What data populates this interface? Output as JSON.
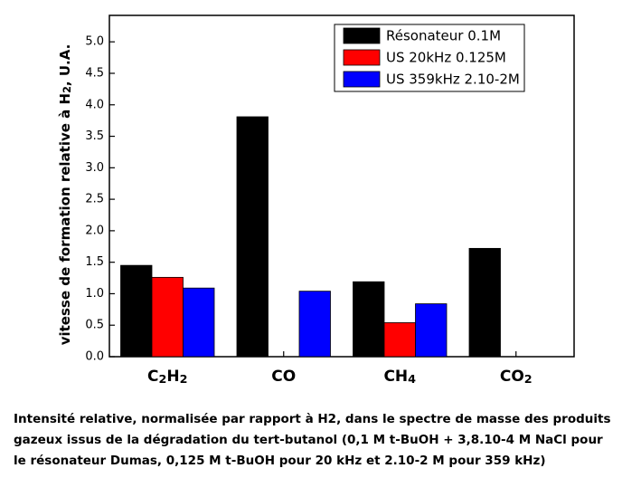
{
  "chart_data": {
    "type": "bar",
    "ylabel": "vitesse de formation relative à H2, U.A.",
    "categories": [
      "C2H2",
      "CO",
      "CH4",
      "CO2"
    ],
    "series": [
      {
        "name": "Résonateur 0.1M",
        "color": "#000000",
        "values": [
          1.45,
          3.81,
          1.19,
          1.72
        ]
      },
      {
        "name": "US 20kHz 0.125M",
        "color": "#ff0000",
        "values": [
          1.26,
          null,
          0.54,
          null
        ]
      },
      {
        "name": "US 359kHz 2.10-2M",
        "color": "#0000ff",
        "values": [
          1.09,
          1.04,
          0.84,
          null
        ]
      }
    ],
    "ylim": [
      0,
      5.42
    ],
    "yticks": [
      {
        "value": 0,
        "label": "0.0"
      },
      0.5,
      {
        "value": 1,
        "label": "1.0"
      },
      1.5,
      {
        "value": 2,
        "label": "2.0"
      },
      2.5,
      {
        "value": 3,
        "label": "3.0"
      },
      3.5,
      {
        "value": 4,
        "label": "4.0"
      },
      4.5,
      {
        "value": 5,
        "label": "5.0"
      }
    ],
    "legend": "upper right",
    "caption": [
      "Intensité relative, normalisée par rapport à H2, dans le spectre de masse des produits",
      "gazeux issus de la dégradation du tert-butanol (0,1 M t-BuOH + 3,8.10-4 M NaCl pour",
      "le résonateur Dumas, 0,125 M t-BuOH pour 20 kHz et 2.10-2 M pour 359 kHz)"
    ]
  }
}
